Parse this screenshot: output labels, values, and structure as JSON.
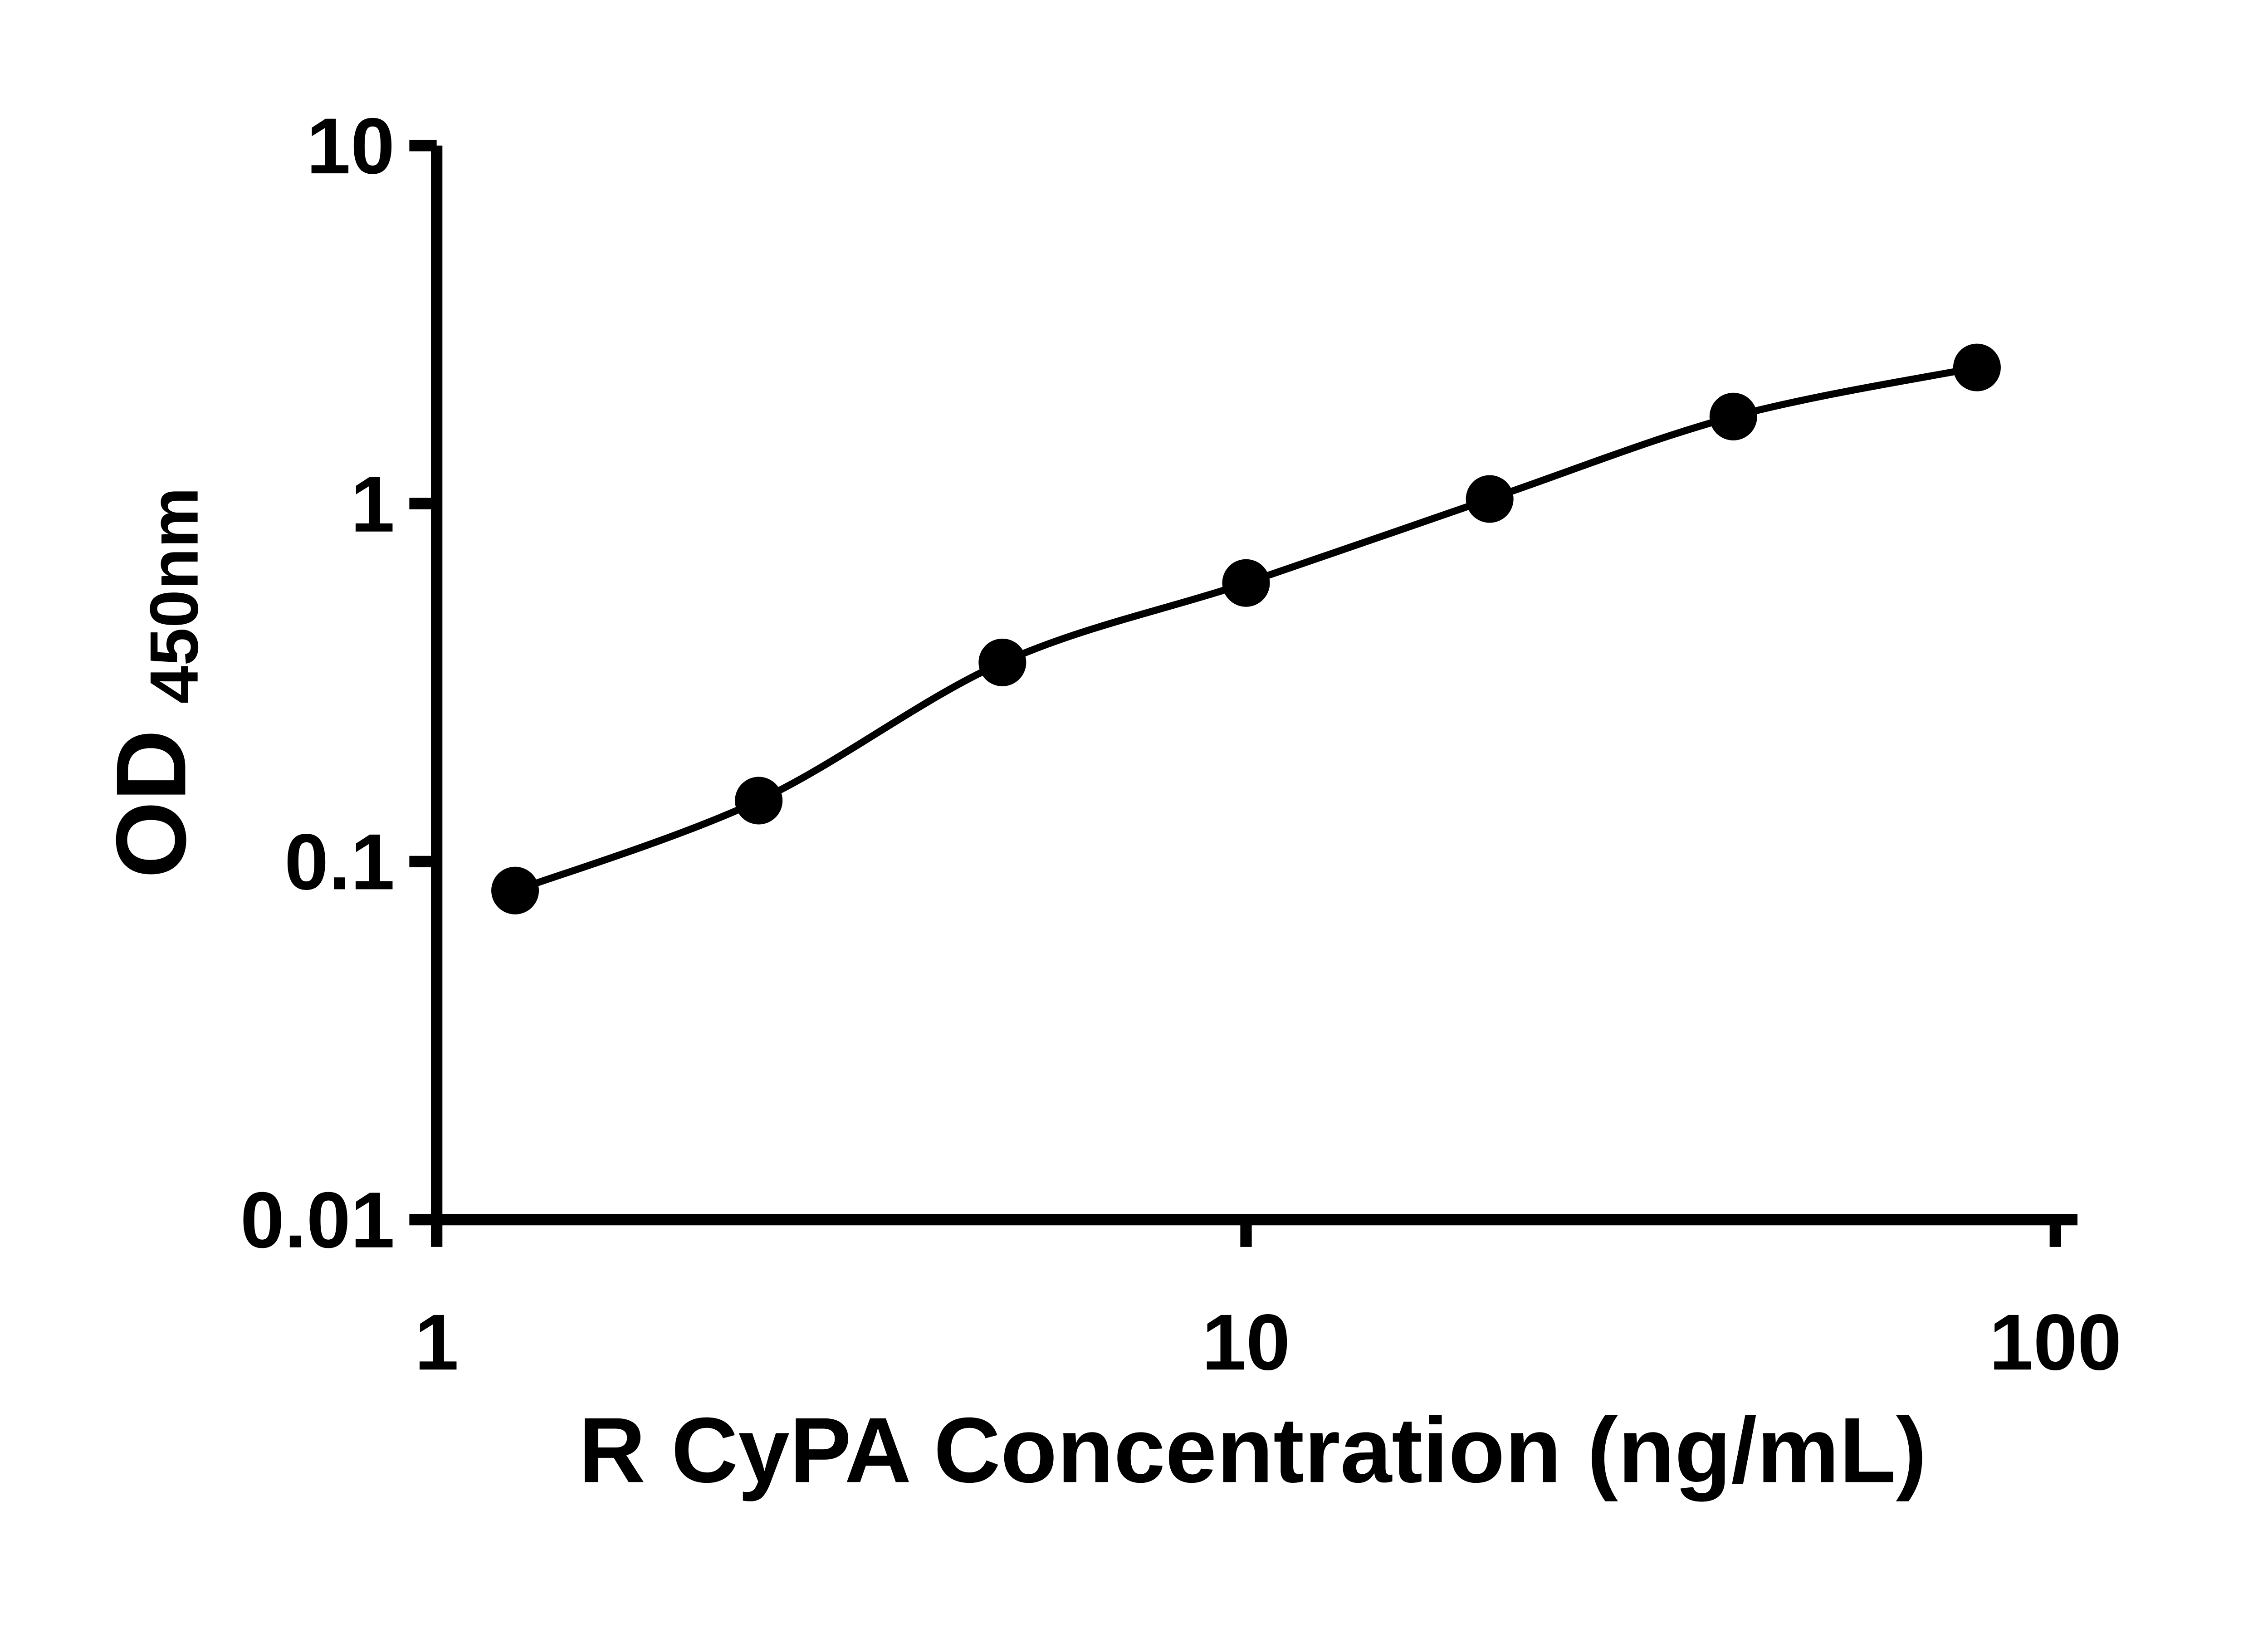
{
  "chart_data": {
    "type": "scatter",
    "title": "",
    "xlabel": "R CyPA Concentration (ng/mL)",
    "ylabel": "OD",
    "ylabel_subscript": "450nm",
    "x_scale": "log",
    "y_scale": "log",
    "xlim": [
      1,
      100
    ],
    "ylim": [
      0.01,
      10
    ],
    "x_ticks": [
      1,
      10,
      100
    ],
    "y_ticks": [
      0.01,
      0.1,
      1,
      10
    ],
    "x_tick_labels": [
      "1",
      "10",
      "100"
    ],
    "y_tick_labels": [
      "0.01",
      "0.1",
      "1",
      "10"
    ],
    "grid": false,
    "legend": "none",
    "fit_curve": true,
    "series": [
      {
        "name": "OD450",
        "marker": "circle",
        "color": "#000000",
        "x": [
          1.25,
          2.5,
          5,
          10,
          20,
          40,
          80
        ],
        "y": [
          0.083,
          0.148,
          0.36,
          0.6,
          1.03,
          1.75,
          2.4
        ]
      }
    ]
  },
  "colors": {
    "foreground": "#000000",
    "background": "#ffffff"
  }
}
